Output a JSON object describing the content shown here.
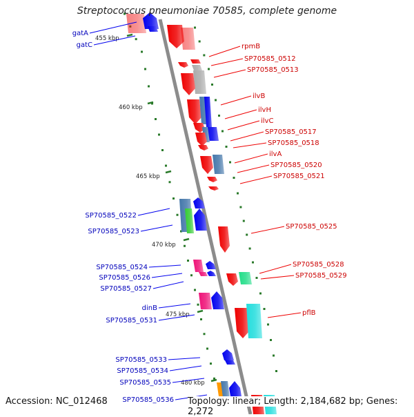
{
  "title": "Streptococcus pneumoniae 70585, complete genome",
  "footer": {
    "accession": "Accession: NC_012468",
    "summary": "Topology: linear; Length: 2,184,682 bp; Genes: 2,272"
  },
  "scale_labels": [
    "455 kbp",
    "460 kbp",
    "465 kbp",
    "470 kbp",
    "475 kbp",
    "480 kbp"
  ],
  "colors": {
    "forward": "#ee0000",
    "reverse": "#0000ee",
    "steel": "#4477aa",
    "green": "#33cc33",
    "magenta": "#ee1177",
    "cyan": "#22dddd",
    "mint": "#22dd88",
    "gray": "#aaaaaa",
    "axis": "#8c8c8c",
    "tick": "#2a7a2a"
  },
  "gene_labels_right": [
    "rpmB",
    "SP70585_0512",
    "SP70585_0513",
    "ilvB",
    "ilvH",
    "ilvC",
    "SP70585_0517",
    "SP70585_0518",
    "ilvA",
    "SP70585_0520",
    "SP70585_0521",
    "SP70585_0525",
    "SP70585_0528",
    "SP70585_0529",
    "pflB"
  ],
  "gene_labels_left": [
    "gatA",
    "gatC",
    "SP70585_0522",
    "SP70585_0523",
    "SP70585_0524",
    "SP70585_0526",
    "SP70585_0527",
    "dinB",
    "SP70585_0531",
    "SP70585_0533",
    "SP70585_0534",
    "SP70585_0535",
    "SP70585_0536"
  ]
}
